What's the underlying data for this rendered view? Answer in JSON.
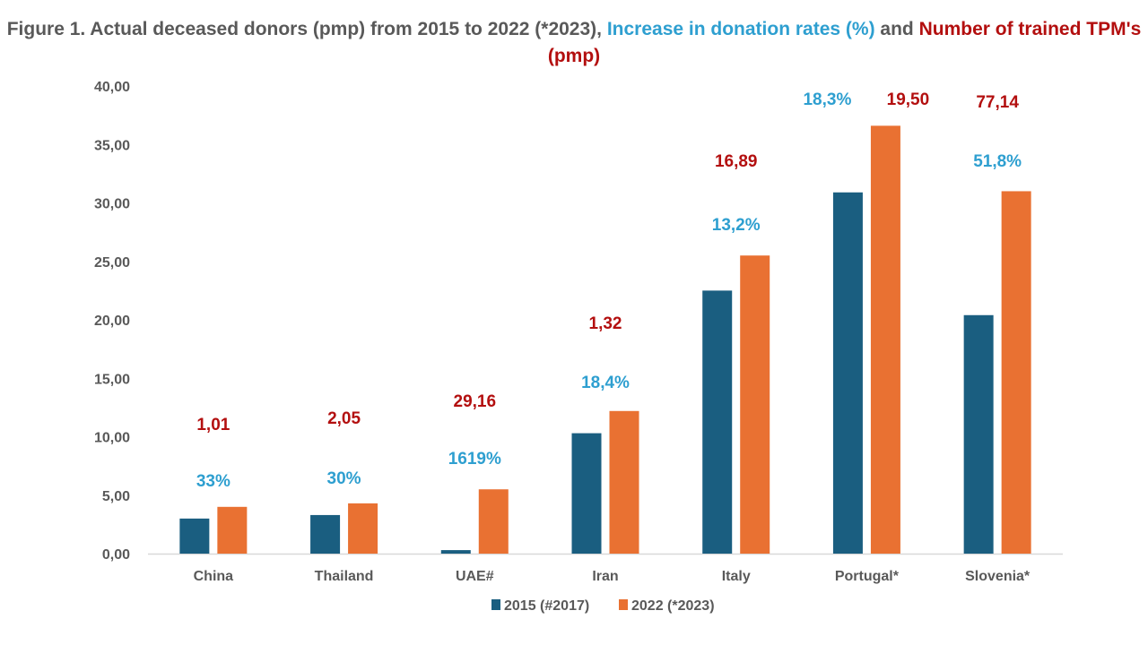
{
  "title": {
    "part1": "Figure 1. Actual deceased donors (pmp) from 2015 to 2022 (*2023), ",
    "part2": "Increase in donation rates (%)",
    "part3": " and ",
    "part4": "Number of  trained TPM's (pmp)"
  },
  "colors": {
    "series1": "#1A5E80",
    "series2": "#E97132",
    "pct_label": "#2E9FD0",
    "tpm_label": "#B30F0F",
    "axis_text": "#595959",
    "baseline": "#D9D9D9"
  },
  "chart_data": {
    "type": "bar",
    "title": "Figure 1. Actual deceased donors (pmp) from 2015 to 2022 (*2023), Increase in donation rates (%) and Number of trained TPM's (pmp)",
    "xlabel": "",
    "ylabel": "",
    "ylim": [
      0,
      40
    ],
    "yticks": [
      "0,00",
      "5,00",
      "10,00",
      "15,00",
      "20,00",
      "25,00",
      "30,00",
      "35,00",
      "40,00"
    ],
    "ytick_values": [
      0,
      5,
      10,
      15,
      20,
      25,
      30,
      35,
      40
    ],
    "grid": false,
    "legend_position": "bottom",
    "categories": [
      "China",
      "Thailand",
      "UAE#",
      "Iran",
      "Italy",
      "Portugal*",
      "Slovenia*"
    ],
    "series": [
      {
        "name": "2015 (#2017)",
        "values": [
          3.0,
          3.3,
          0.3,
          10.3,
          22.5,
          30.9,
          20.4
        ]
      },
      {
        "name": "2022 (*2023)",
        "values": [
          4.0,
          4.3,
          5.5,
          12.2,
          25.5,
          36.6,
          31.0
        ]
      }
    ],
    "annotations": {
      "increase_in_donation_rates": [
        "33%",
        "30%",
        "1619%",
        "18,4%",
        "13,2%",
        "18,3%",
        "51,8%"
      ],
      "trained_tpms_pmp": [
        "1,01",
        "2,05",
        "29,16",
        "1,32",
        "16,89",
        "19,50",
        "77,14"
      ]
    }
  }
}
